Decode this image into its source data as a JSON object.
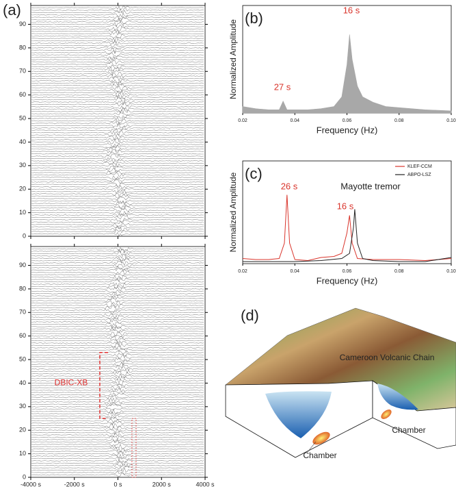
{
  "chart_data": [
    {
      "type": "record-section",
      "panel_label": "(a)",
      "xlim": [
        -4000,
        4000
      ],
      "xticks": [
        -4000,
        -2000,
        0,
        2000,
        4000
      ],
      "ylim": [
        0,
        98
      ],
      "yticks": [
        0,
        10,
        20,
        30,
        40,
        50,
        60,
        70,
        80,
        90
      ]
    },
    {
      "type": "record-section",
      "annotation": "DBIC-XB",
      "xlim": [
        -4000,
        4000
      ],
      "xticks": [
        {
          "value": -4000,
          "label": "-4000 s"
        },
        {
          "value": -2000,
          "label": "-2000 s"
        },
        {
          "value": 0,
          "label": "0 s"
        },
        {
          "value": 2000,
          "label": "2000 s"
        },
        {
          "value": 4000,
          "label": "4000 s"
        }
      ],
      "ylim": [
        0,
        98
      ],
      "yticks": [
        0,
        10,
        20,
        30,
        40,
        50,
        60,
        70,
        80,
        90
      ]
    },
    {
      "type": "area",
      "panel_label": "(b)",
      "x_label": "Frequency (Hz)",
      "y_label": "Normalized Amplitude",
      "x": [
        0.02,
        0.025,
        0.03,
        0.034,
        0.0355,
        0.037,
        0.04,
        0.045,
        0.05,
        0.055,
        0.058,
        0.06,
        0.061,
        0.062,
        0.064,
        0.066,
        0.07,
        0.075,
        0.08,
        0.09,
        0.1
      ],
      "values": [
        0.06,
        0.04,
        0.03,
        0.03,
        0.11,
        0.03,
        0.03,
        0.03,
        0.04,
        0.06,
        0.15,
        0.45,
        0.73,
        0.5,
        0.25,
        0.15,
        0.1,
        0.06,
        0.05,
        0.03,
        0.02
      ],
      "color": "#a8a8a8",
      "annotations": [
        "27 s",
        "16 s"
      ],
      "xlim": [
        0.02,
        0.1
      ],
      "xticks": [
        0.02,
        0.04,
        0.06,
        0.08,
        {
          "value": 0.1,
          "label": "0.10"
        }
      ],
      "ylim": [
        0,
        1
      ]
    },
    {
      "type": "line",
      "panel_label": "(c)",
      "x_label": "Frequency (Hz)",
      "y_label": "Normalized Amplitude",
      "series": [
        {
          "name": "KLEF-CCM",
          "color": "#d9342b",
          "x": [
            0.02,
            0.025,
            0.03,
            0.034,
            0.036,
            0.037,
            0.038,
            0.04,
            0.045,
            0.05,
            0.055,
            0.058,
            0.06,
            0.061,
            0.062,
            0.064,
            0.07,
            0.08,
            0.09,
            0.1
          ],
          "values": [
            0.05,
            0.04,
            0.04,
            0.05,
            0.2,
            0.67,
            0.2,
            0.04,
            0.03,
            0.06,
            0.07,
            0.1,
            0.3,
            0.47,
            0.2,
            0.05,
            0.04,
            0.04,
            0.03,
            0.05
          ]
        },
        {
          "name": "ABPO-LSZ",
          "color": "#222222",
          "x": [
            0.02,
            0.04,
            0.05,
            0.058,
            0.061,
            0.0625,
            0.063,
            0.064,
            0.066,
            0.07,
            0.08,
            0.09,
            0.1
          ],
          "values": [
            0.02,
            0.02,
            0.03,
            0.05,
            0.1,
            0.35,
            0.53,
            0.2,
            0.05,
            0.03,
            0.02,
            0.02,
            0.06
          ]
        }
      ],
      "annotations": [
        "26 s",
        "16 s",
        "Mayotte tremor"
      ],
      "legend": "upper right",
      "xlim": [
        0.02,
        0.1
      ],
      "xticks": [
        0.02,
        0.04,
        0.06,
        0.08,
        {
          "value": 0.1,
          "label": "0.10"
        }
      ],
      "ylim": [
        0,
        1
      ]
    }
  ],
  "diagram": {
    "panel_label": "(d)",
    "labels": [
      "Cameroon Volcanic Chain",
      "Chamber",
      "Chamber"
    ]
  }
}
